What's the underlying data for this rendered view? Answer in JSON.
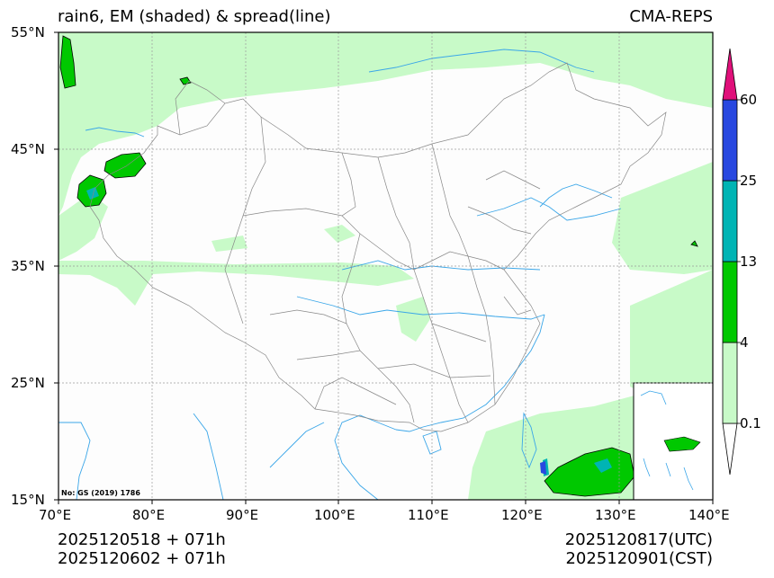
{
  "header": {
    "title": "rain6, EM (shaded) & spread(line)",
    "model": "CMA-REPS"
  },
  "map": {
    "lon_range": [
      70,
      140
    ],
    "lat_range": [
      15,
      55
    ],
    "lon_ticks": [
      "70°E",
      "80°E",
      "90°E",
      "100°E",
      "110°E",
      "120°E",
      "130°E",
      "140°E"
    ],
    "lat_ticks": [
      "55°N",
      "45°N",
      "35°N",
      "25°N",
      "15°N"
    ],
    "review_number": "No: GS (2019) 1786"
  },
  "colorbar": {
    "levels": [
      "0.1",
      "4",
      "13",
      "25",
      "60"
    ],
    "colors": [
      "#c8fac8",
      "#00c800",
      "#00b4b4",
      "#2848e0",
      "#e0107a"
    ],
    "extend_low_color": "#ffffff"
  },
  "footer": {
    "init_utc": "2025120518  +  071h",
    "init_cst": "2025120602  +  071h",
    "valid_utc": "2025120817(UTC)",
    "valid_cst": "2025120901(CST)"
  },
  "colors": {
    "light_rain": "#c8fac8",
    "moderate": "#00c800",
    "river": "#3aa6e8",
    "border": "#888888"
  }
}
